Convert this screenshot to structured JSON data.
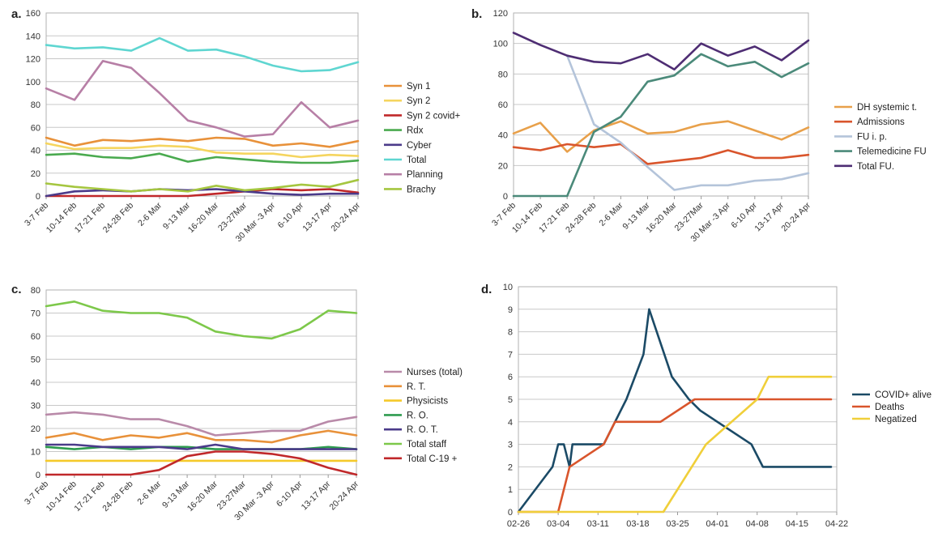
{
  "chart_data": [
    {
      "panel": "a.",
      "type": "line",
      "categories": [
        "3-7 Feb",
        "10-14 Feb",
        "17-21 Feb",
        "24-28 Feb",
        "2-6 Mar",
        "9-13 Mar",
        "16-20 Mar",
        "23-27Mar",
        "30 Mar -3 Apr",
        "6-10 Apr",
        "13-17 Apr",
        "20-24 Apr"
      ],
      "ylim": [
        0,
        160
      ],
      "yticks": [
        0,
        20,
        40,
        60,
        80,
        100,
        120,
        140,
        160
      ],
      "grid": true,
      "legend": "right",
      "series": [
        {
          "name": "Syn 1",
          "color": "#e8913a",
          "values": [
            51,
            44,
            49,
            48,
            50,
            48,
            51,
            50,
            44,
            46,
            43,
            48
          ]
        },
        {
          "name": "Syn 2",
          "color": "#f5d55f",
          "values": [
            46,
            41,
            42,
            42,
            44,
            43,
            38,
            37,
            37,
            34,
            36,
            35
          ]
        },
        {
          "name": "Syn 2 covid+",
          "color": "#c0282a",
          "values": [
            0,
            0,
            0,
            0,
            0,
            0,
            2,
            4,
            6,
            5,
            6,
            3
          ]
        },
        {
          "name": "Rdx",
          "color": "#4aaa4f",
          "values": [
            36,
            37,
            34,
            33,
            37,
            30,
            34,
            32,
            30,
            29,
            29,
            31
          ]
        },
        {
          "name": "Cyber",
          "color": "#4b3b8a",
          "values": [
            0,
            4,
            5,
            4,
            6,
            5,
            6,
            4,
            2,
            1,
            2,
            2
          ]
        },
        {
          "name": "Total",
          "color": "#5fd6d1",
          "values": [
            132,
            129,
            130,
            127,
            138,
            127,
            128,
            122,
            114,
            109,
            110,
            117
          ]
        },
        {
          "name": "Planning",
          "color": "#b77fa6",
          "values": [
            94,
            84,
            118,
            112,
            90,
            66,
            60,
            52,
            54,
            82,
            60,
            66
          ]
        },
        {
          "name": "Brachy",
          "color": "#a5c640",
          "values": [
            11,
            8,
            6,
            4,
            6,
            4,
            9,
            5,
            7,
            10,
            8,
            14
          ]
        }
      ]
    },
    {
      "panel": "b.",
      "type": "line",
      "categories": [
        "3-7 Feb",
        "10-14 Feb",
        "17-21 Feb",
        "24-28 Feb",
        "2-6 Mar",
        "9-13 Mar",
        "16-20 Mar",
        "23-27Mar",
        "30 Mar -3 Apr",
        "6-10 Apr",
        "13-17 Apr",
        "20-24 Apr"
      ],
      "ylim": [
        0,
        120
      ],
      "yticks": [
        0,
        20,
        40,
        60,
        80,
        100,
        120
      ],
      "grid": true,
      "legend": "right",
      "series": [
        {
          "name": "DH systemic t.",
          "color": "#e8a04a",
          "values": [
            41,
            48,
            29,
            43,
            49,
            41,
            42,
            47,
            49,
            43,
            37,
            45
          ]
        },
        {
          "name": "Admissions",
          "color": "#d9552c",
          "values": [
            32,
            30,
            34,
            32,
            34,
            21,
            23,
            25,
            30,
            25,
            25,
            27
          ]
        },
        {
          "name": "FU i. p.",
          "color": "#b4c4da",
          "values": [
            null,
            null,
            92,
            47,
            35,
            19,
            4,
            7,
            7,
            10,
            11,
            15
          ]
        },
        {
          "name": "Telemedicine FU",
          "color": "#4b8a7a",
          "values": [
            0,
            0,
            0,
            42,
            52,
            75,
            79,
            93,
            85,
            88,
            78,
            87
          ]
        },
        {
          "name": "Total FU.",
          "color": "#4e2d73",
          "values": [
            107,
            99,
            92,
            88,
            87,
            93,
            83,
            100,
            92,
            98,
            89,
            102
          ]
        }
      ]
    },
    {
      "panel": "c.",
      "type": "line",
      "categories": [
        "3-7 Feb",
        "10-14 Feb",
        "17-21 Feb",
        "24-28 Feb",
        "2-6 Mar",
        "9-13 Mar",
        "16-20 Mar",
        "23-27Mar",
        "30 Mar -3 Apr",
        "6-10 Apr",
        "13-17 Apr",
        "20-24 Apr"
      ],
      "ylim": [
        0,
        80
      ],
      "yticks": [
        0,
        10,
        20,
        30,
        40,
        50,
        60,
        70,
        80
      ],
      "grid": true,
      "legend": "right",
      "series": [
        {
          "name": "Nurses (total)",
          "color": "#b98aa9",
          "values": [
            26,
            27,
            26,
            24,
            24,
            21,
            17,
            18,
            19,
            19,
            23,
            25
          ]
        },
        {
          "name": "R. T.",
          "color": "#e8913a",
          "values": [
            16,
            18,
            15,
            17,
            16,
            18,
            15,
            15,
            14,
            17,
            19,
            17
          ]
        },
        {
          "name": "Physicists",
          "color": "#f5c92a",
          "values": [
            6,
            6,
            6,
            6,
            6,
            6,
            6,
            6,
            6,
            6,
            6,
            6
          ]
        },
        {
          "name": "R. O.",
          "color": "#2e9b4f",
          "values": [
            12,
            11,
            12,
            11,
            12,
            12,
            11,
            11,
            11,
            11,
            12,
            11
          ]
        },
        {
          "name": "R. O. T.",
          "color": "#4b3b8a",
          "values": [
            13,
            13,
            12,
            12,
            12,
            11,
            13,
            11,
            11,
            11,
            11,
            11
          ]
        },
        {
          "name": "Total staff",
          "color": "#7dc84a",
          "values": [
            73,
            75,
            71,
            70,
            70,
            68,
            62,
            60,
            59,
            63,
            71,
            70
          ]
        },
        {
          "name": "Total C-19 +",
          "color": "#c0282a",
          "values": [
            0,
            0,
            0,
            0,
            2,
            8,
            10,
            10,
            9,
            7,
            3,
            0
          ]
        }
      ]
    },
    {
      "panel": "d.",
      "type": "line",
      "xticks": [
        "02-26",
        "03-04",
        "03-11",
        "03-18",
        "03-25",
        "04-01",
        "04-08",
        "04-15",
        "04-22"
      ],
      "ylim": [
        0,
        10
      ],
      "yticks": [
        0,
        1,
        2,
        3,
        4,
        5,
        6,
        7,
        8,
        9,
        10
      ],
      "grid": true,
      "legend": "right",
      "series": [
        {
          "name": "COVID+ alive",
          "color": "#1b4a66",
          "points": [
            [
              0,
              0
            ],
            [
              6,
              2
            ],
            [
              7,
              3
            ],
            [
              8,
              3
            ],
            [
              9,
              2
            ],
            [
              9.5,
              3
            ],
            [
              15,
              3
            ],
            [
              17,
              4
            ],
            [
              19,
              5
            ],
            [
              22,
              7
            ],
            [
              23,
              9
            ],
            [
              27,
              6
            ],
            [
              30,
              5
            ],
            [
              32,
              4.5
            ],
            [
              35,
              4
            ],
            [
              41,
              3
            ],
            [
              43,
              2
            ],
            [
              55,
              2
            ]
          ]
        },
        {
          "name": "Deaths",
          "color": "#d9552c",
          "points": [
            [
              0,
              0
            ],
            [
              7,
              0
            ],
            [
              9,
              2
            ],
            [
              15,
              3
            ],
            [
              17,
              4
            ],
            [
              25,
              4
            ],
            [
              31,
              5
            ],
            [
              55,
              5
            ]
          ]
        },
        {
          "name": "Negatized",
          "color": "#f0cf3a",
          "points": [
            [
              0,
              0
            ],
            [
              25.5,
              0
            ],
            [
              33,
              3
            ],
            [
              42,
              5
            ],
            [
              44,
              6
            ],
            [
              55,
              6
            ]
          ]
        }
      ]
    }
  ],
  "panels": {
    "a": {
      "label": "a."
    },
    "b": {
      "label": "b."
    },
    "c": {
      "label": "c."
    },
    "d": {
      "label": "d."
    }
  }
}
